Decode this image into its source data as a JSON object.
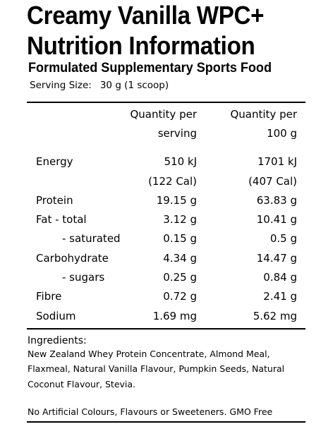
{
  "title_line1": "Creamy Vanilla WPC+",
  "title_line2": "Nutrition Information",
  "subtitle": "Formulated Supplementary Sports Food",
  "serving": {
    "label": "Serving Size:",
    "value": "30 g (1 scoop)"
  },
  "table": {
    "header": {
      "per_serving_line1": "Quantity per",
      "per_serving_line2": "serving",
      "per_100g_line1": "Quantity per",
      "per_100g_line2": "100 g"
    },
    "rows": [
      {
        "name": "Energy",
        "per_serving": "510 kJ",
        "per_100g": "1701 kJ"
      },
      {
        "name": "",
        "per_serving": "(122 Cal)",
        "per_100g": "(407 Cal)"
      },
      {
        "name": "Protein",
        "per_serving": "19.15 g",
        "per_100g": "63.83 g"
      },
      {
        "name": "Fat - total",
        "per_serving": "3.12 g",
        "per_100g": "10.41 g"
      },
      {
        "name": "- saturated",
        "per_serving": "0.15 g",
        "per_100g": "0.5 g"
      },
      {
        "name": "Carbohydrate",
        "per_serving": "4.34 g",
        "per_100g": "14.47 g"
      },
      {
        "name": "- sugars",
        "per_serving": "0.25 g",
        "per_100g": "0.84 g"
      },
      {
        "name": "Fibre",
        "per_serving": "0.72 g",
        "per_100g": "2.41 g"
      },
      {
        "name": "Sodium",
        "per_serving": "1.69 mg",
        "per_100g": "5.62 mg"
      }
    ]
  },
  "ingredients": {
    "heading": "Ingredients:",
    "lines": [
      "New Zealand Whey Protein Concentrate, Almond Meal,",
      "Flaxmeal, Natural Vanilla Flavour, Pumpkin Seeds, Natural",
      "Coconut Flavour, Stevia."
    ]
  },
  "footer": "No Artificial Colours, Flavours or Sweeteners. GMO Free"
}
